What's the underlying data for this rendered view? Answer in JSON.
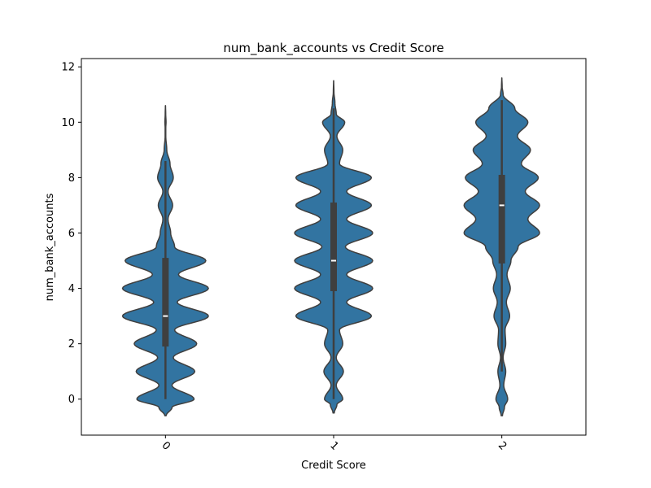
{
  "chart_data": {
    "type": "violin",
    "title": "num_bank_accounts vs Credit Score",
    "xlabel": "Credit Score",
    "ylabel": "num_bank_accounts",
    "categories": [
      "0",
      "1",
      "2"
    ],
    "ylim": [
      -1.3,
      12.3
    ],
    "yticks": [
      0,
      2,
      4,
      6,
      8,
      10,
      12
    ],
    "grid": false,
    "colors": {
      "violin": "#3274a1",
      "outline": "#3f3f3f",
      "box": "#3f3f3f",
      "median": "#ffffff"
    },
    "series": [
      {
        "category": "0",
        "stats": {
          "min": 0,
          "q1": 1.9,
          "median": 3,
          "q3": 5.1,
          "max": 8.6
        },
        "density_y": [
          -0.6,
          -0.3,
          0,
          0.5,
          1,
          1.5,
          2,
          2.5,
          3,
          3.5,
          4,
          4.5,
          5,
          5.5,
          6,
          6.5,
          7,
          7.5,
          8,
          8.5,
          9,
          9.5,
          9.8,
          10,
          10.3,
          10.6
        ],
        "density_w": [
          0.01,
          0.1,
          0.44,
          0.1,
          0.45,
          0.12,
          0.48,
          0.14,
          0.66,
          0.18,
          0.66,
          0.2,
          0.62,
          0.14,
          0.08,
          0.04,
          0.11,
          0.04,
          0.12,
          0.07,
          0.02,
          0.005,
          0.005,
          0.009,
          0.004,
          0.001
        ]
      },
      {
        "category": "1",
        "stats": {
          "min": 0,
          "q1": 3.9,
          "median": 5,
          "q3": 7.1,
          "max": 10.5
        },
        "density_y": [
          -0.5,
          -0.2,
          0,
          0.5,
          1,
          1.5,
          2,
          2.5,
          3,
          3.5,
          4,
          4.5,
          5,
          5.5,
          6,
          6.5,
          7,
          7.5,
          8,
          8.5,
          9,
          9.5,
          10,
          10.3,
          10.7,
          11.1,
          11.5
        ],
        "density_w": [
          0.01,
          0.05,
          0.14,
          0.04,
          0.15,
          0.04,
          0.14,
          0.09,
          0.58,
          0.2,
          0.6,
          0.2,
          0.6,
          0.18,
          0.6,
          0.2,
          0.58,
          0.2,
          0.58,
          0.09,
          0.14,
          0.05,
          0.17,
          0.04,
          0.02,
          0.005,
          0.001
        ]
      },
      {
        "category": "2",
        "stats": {
          "min": 1,
          "q1": 4.9,
          "median": 7,
          "q3": 8.1,
          "max": 10.8
        },
        "density_y": [
          -0.6,
          -0.3,
          0,
          0.5,
          1,
          1.5,
          2,
          2.5,
          3,
          3.5,
          4,
          4.5,
          5,
          5.5,
          6,
          6.5,
          7,
          7.5,
          8,
          8.5,
          9,
          9.5,
          10,
          10.5,
          11,
          11.3,
          11.6
        ],
        "density_w": [
          0.01,
          0.04,
          0.09,
          0.03,
          0.06,
          0.02,
          0.06,
          0.05,
          0.12,
          0.07,
          0.13,
          0.08,
          0.14,
          0.25,
          0.58,
          0.4,
          0.58,
          0.36,
          0.56,
          0.3,
          0.44,
          0.24,
          0.4,
          0.2,
          0.02,
          0.005,
          0.001
        ]
      }
    ]
  }
}
